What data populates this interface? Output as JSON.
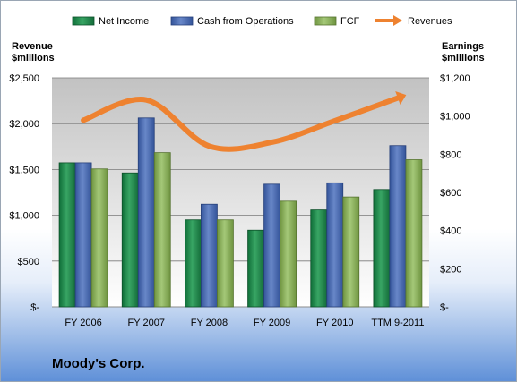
{
  "company": "Moody's Corp.",
  "colors": {
    "net_income": "#1f8a4c",
    "cash_from_operations": "#4a6db4",
    "fcf": "#8ab35a",
    "revenues": "#ee8230"
  },
  "chart_data": {
    "type": "bar",
    "categories": [
      "FY 2006",
      "FY 2007",
      "FY 2008",
      "FY 2009",
      "FY 2010",
      "TTM 9-2011"
    ],
    "series": [
      {
        "name": "Net Income",
        "axis": "right",
        "values": [
          755,
          702,
          456,
          402,
          508,
          615
        ]
      },
      {
        "name": "Cash from Operations",
        "axis": "right",
        "values": [
          755,
          990,
          538,
          643,
          650,
          845
        ]
      },
      {
        "name": "FCF",
        "axis": "right",
        "values": [
          723,
          808,
          456,
          554,
          576,
          771
        ]
      },
      {
        "name": "Revenues",
        "type": "line",
        "axis": "left",
        "values": [
          2037,
          2259,
          1755,
          1797,
          2032,
          2280
        ]
      }
    ],
    "left_axis": {
      "label_line1": "Revenue",
      "label_line2": "$millions",
      "ylim": [
        0,
        2500
      ],
      "tick_labels": [
        "$2,500",
        "$2,000",
        "$1,500",
        "$1,000",
        "$500",
        "$-"
      ]
    },
    "right_axis": {
      "label_line1": "Earnings",
      "label_line2": "$millions",
      "ylim": [
        0,
        1200
      ],
      "tick_labels": [
        "$1,200",
        "$1,000",
        "$800",
        "$600",
        "$400",
        "$200",
        "$-"
      ]
    },
    "legend_position": "top",
    "grid": true
  }
}
